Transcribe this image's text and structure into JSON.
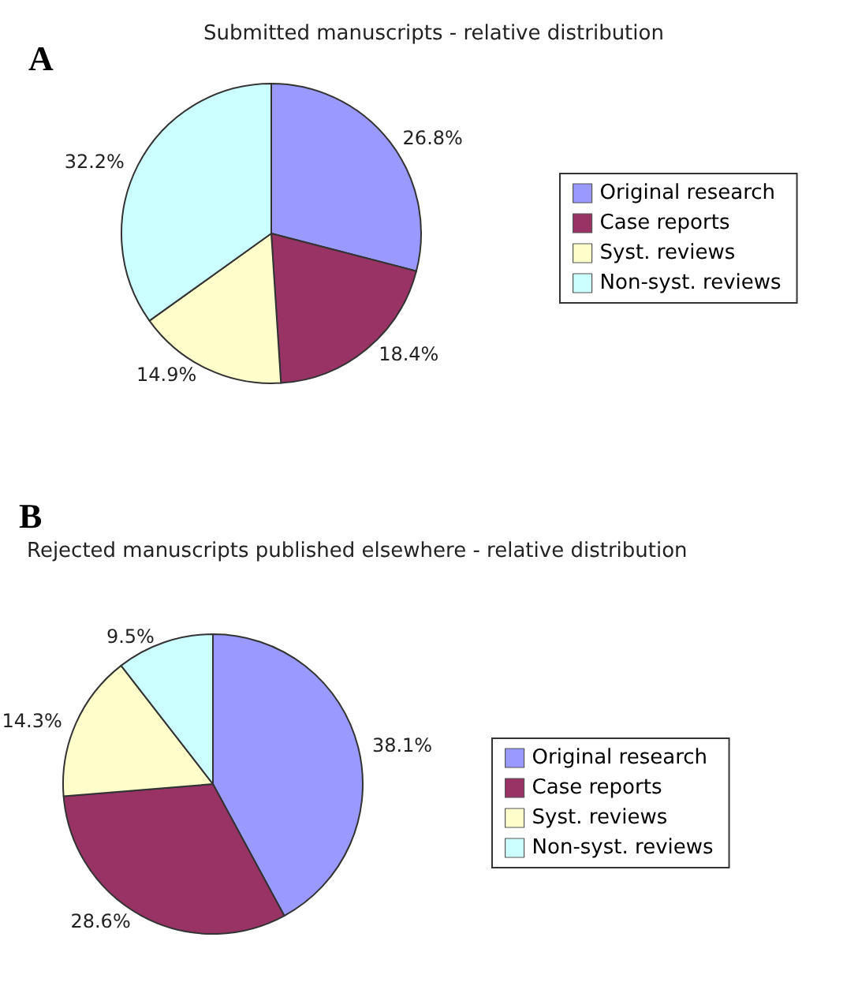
{
  "chart_data": [
    {
      "type": "pie",
      "title": "Submitted manuscripts - relative distribution",
      "annotations": [
        "A"
      ],
      "categories": [
        "Original research",
        "Case reports",
        "Syst. reviews",
        "Non-syst. reviews"
      ],
      "values": [
        26.8,
        18.4,
        14.9,
        32.2
      ],
      "value_labels": [
        "26.8%",
        "18.4%",
        "14.9%",
        "32.2%"
      ],
      "colors": [
        "#9999ff",
        "#993366",
        "#ffffcc",
        "#ccffff"
      ],
      "legend": "right"
    },
    {
      "type": "pie",
      "title": "Rejected manuscripts published elsewhere - relative distribution",
      "annotations": [
        "B"
      ],
      "categories": [
        "Original research",
        "Case reports",
        "Syst. reviews",
        "Non-syst. reviews"
      ],
      "values": [
        38.1,
        28.6,
        14.3,
        9.5
      ],
      "value_labels": [
        "38.1%",
        "28.6%",
        "14.3%",
        "9.5%"
      ],
      "colors": [
        "#9999ff",
        "#993366",
        "#ffffcc",
        "#ccffff"
      ],
      "legend": "right"
    }
  ]
}
